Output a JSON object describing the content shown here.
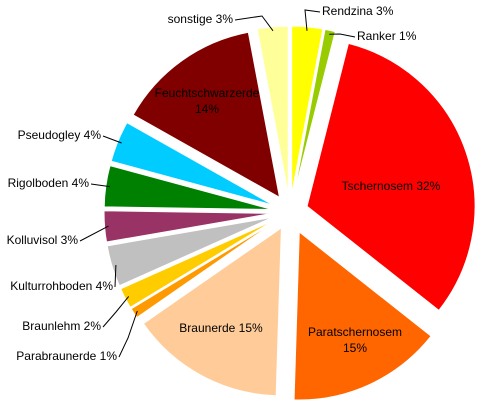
{
  "chart_data": {
    "type": "pie",
    "unit": "%",
    "exploded": true,
    "legend": "none",
    "slices": [
      {
        "label": "Rendzina 3%",
        "value": 3,
        "color": "#ffff00"
      },
      {
        "label": "Ranker 1%",
        "value": 1,
        "color": "#99cc00"
      },
      {
        "label": "Tschernosem 32%",
        "value": 32,
        "color": "#ff0000"
      },
      {
        "label": "Paratschernosem 15%",
        "value": 15,
        "color": "#ff6600"
      },
      {
        "label": "Braunerde 15%",
        "value": 15,
        "color": "#ffcc99"
      },
      {
        "label": "Parabraunerde 1%",
        "value": 1,
        "color": "#ff9900"
      },
      {
        "label": "Braunlehm 2%",
        "value": 2,
        "color": "#ffcc00"
      },
      {
        "label": "Kulturrohboden 4%",
        "value": 4,
        "color": "#c0c0c0"
      },
      {
        "label": "Kolluvisol 3%",
        "value": 3,
        "color": "#993366"
      },
      {
        "label": "Rigolboden 4%",
        "value": 4,
        "color": "#008000"
      },
      {
        "label": "Pseudogley 4%",
        "value": 4,
        "color": "#00ccff"
      },
      {
        "label": "Feuchtschwarzerde 14%",
        "value": 14,
        "color": "#800000"
      },
      {
        "label": "sonstige 3%",
        "value": 3,
        "color": "#ffff99"
      }
    ]
  }
}
